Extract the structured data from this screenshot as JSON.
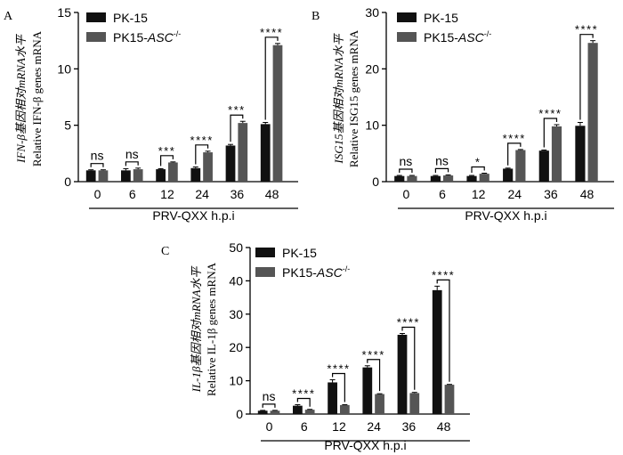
{
  "chart_data": [
    {
      "panel": "A",
      "type": "bar",
      "ylabel_cn": "IFN-β基因相对mRNA水平",
      "ylabel_en": "Relative IFN-β genes mRNA",
      "xlabel": "PRV-QXX h.p.i",
      "categories": [
        "0",
        "6",
        "12",
        "24",
        "36",
        "48"
      ],
      "series": [
        {
          "name": "PK-15",
          "color": "#111111",
          "values": [
            1.0,
            1.0,
            1.1,
            1.2,
            3.2,
            5.1
          ],
          "errors": [
            0.05,
            0.15,
            0.05,
            0.1,
            0.1,
            0.15
          ]
        },
        {
          "name": "PK15-ASC-/-",
          "color": "#555555",
          "values": [
            1.0,
            1.1,
            1.7,
            2.6,
            5.2,
            12.1
          ],
          "errors": [
            0.05,
            0.1,
            0.05,
            0.1,
            0.15,
            0.15
          ]
        }
      ],
      "significance": [
        "ns",
        "ns",
        "***",
        "****",
        "***",
        "****"
      ],
      "ylim": [
        0,
        15
      ],
      "yticks": [
        0,
        5,
        10,
        15
      ]
    },
    {
      "panel": "B",
      "type": "bar",
      "ylabel_cn": "ISG15基因相对mRNA水平",
      "ylabel_en": "Relative ISG15 genes mRNA",
      "xlabel": "PRV-QXX h.p.i",
      "categories": [
        "0",
        "6",
        "12",
        "24",
        "36",
        "48"
      ],
      "series": [
        {
          "name": "PK-15",
          "color": "#111111",
          "values": [
            1.0,
            1.0,
            1.0,
            2.3,
            5.5,
            9.9
          ],
          "errors": [
            0.1,
            0.1,
            0.1,
            0.1,
            0.1,
            0.6
          ]
        },
        {
          "name": "PK15-ASC-/-",
          "color": "#555555",
          "values": [
            1.0,
            1.1,
            1.4,
            5.6,
            9.8,
            24.6
          ],
          "errors": [
            0.1,
            0.1,
            0.1,
            0.1,
            0.3,
            0.4
          ]
        }
      ],
      "significance": [
        "ns",
        "ns",
        "*",
        "****",
        "****",
        "****"
      ],
      "ylim": [
        0,
        30
      ],
      "yticks": [
        0,
        10,
        20,
        30
      ]
    },
    {
      "panel": "C",
      "type": "bar",
      "ylabel_cn": "IL-1β基因相对mRNA水平",
      "ylabel_en": "Relative IL-1β genes mRNA",
      "xlabel": "PRV-QXX h.p.i",
      "categories": [
        "0",
        "6",
        "12",
        "24",
        "36",
        "48"
      ],
      "series": [
        {
          "name": "PK-15",
          "color": "#111111",
          "values": [
            1.0,
            2.5,
            9.5,
            14.0,
            23.8,
            37.2
          ],
          "errors": [
            0.1,
            0.3,
            0.8,
            0.5,
            0.4,
            1.2
          ]
        },
        {
          "name": "PK15-ASC-/-",
          "color": "#555555",
          "values": [
            1.0,
            1.3,
            2.7,
            6.0,
            6.3,
            8.8
          ],
          "errors": [
            0.1,
            0.1,
            0.1,
            0.1,
            0.2,
            0.1
          ]
        }
      ],
      "significance": [
        "ns",
        "****",
        "****",
        "****",
        "****",
        "****"
      ],
      "ylim": [
        0,
        50
      ],
      "yticks": [
        0,
        10,
        20,
        30,
        40,
        50
      ]
    }
  ]
}
